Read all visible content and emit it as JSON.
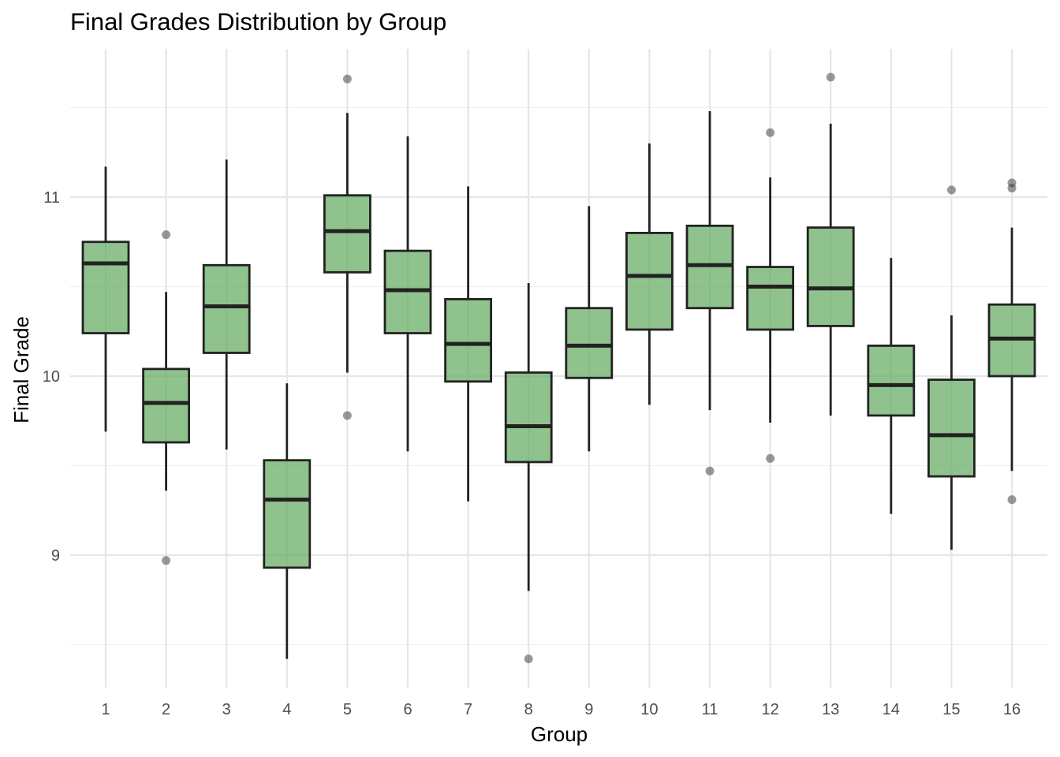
{
  "chart_data": {
    "type": "boxplot",
    "title": "Final Grades Distribution by Group",
    "xlabel": "Group",
    "ylabel": "Final Grade",
    "ylim": [
      8.3,
      11.8
    ],
    "yticks": [
      9,
      10,
      11
    ],
    "y_minor_ticks": [
      8.5,
      9.5,
      10.5,
      11.5
    ],
    "grid": true,
    "legend": "none",
    "colors": {
      "box_fill": "#5fa85c",
      "box_stroke": "#222222",
      "outlier": "#333333"
    },
    "categories": [
      "1",
      "2",
      "3",
      "4",
      "5",
      "6",
      "7",
      "8",
      "9",
      "10",
      "11",
      "12",
      "13",
      "14",
      "15",
      "16"
    ],
    "boxes": [
      {
        "group": "1",
        "whisker_low": 9.69,
        "q1": 10.24,
        "median": 10.63,
        "q3": 10.75,
        "whisker_high": 11.17,
        "outliers": []
      },
      {
        "group": "2",
        "whisker_low": 9.36,
        "q1": 9.63,
        "median": 9.85,
        "q3": 10.04,
        "whisker_high": 10.47,
        "outliers": [
          10.79,
          8.97
        ]
      },
      {
        "group": "3",
        "whisker_low": 9.59,
        "q1": 10.13,
        "median": 10.39,
        "q3": 10.62,
        "whisker_high": 11.21,
        "outliers": []
      },
      {
        "group": "4",
        "whisker_low": 8.42,
        "q1": 8.93,
        "median": 9.31,
        "q3": 9.53,
        "whisker_high": 9.96,
        "outliers": []
      },
      {
        "group": "5",
        "whisker_low": 10.02,
        "q1": 10.58,
        "median": 10.81,
        "q3": 11.01,
        "whisker_high": 11.47,
        "outliers": [
          11.66,
          9.78
        ]
      },
      {
        "group": "6",
        "whisker_low": 9.58,
        "q1": 10.24,
        "median": 10.48,
        "q3": 10.7,
        "whisker_high": 11.34,
        "outliers": []
      },
      {
        "group": "7",
        "whisker_low": 9.3,
        "q1": 9.97,
        "median": 10.18,
        "q3": 10.43,
        "whisker_high": 11.06,
        "outliers": []
      },
      {
        "group": "8",
        "whisker_low": 8.8,
        "q1": 9.52,
        "median": 9.72,
        "q3": 10.02,
        "whisker_high": 10.52,
        "outliers": [
          8.42
        ]
      },
      {
        "group": "9",
        "whisker_low": 9.58,
        "q1": 9.99,
        "median": 10.17,
        "q3": 10.38,
        "whisker_high": 10.95,
        "outliers": []
      },
      {
        "group": "10",
        "whisker_low": 9.84,
        "q1": 10.26,
        "median": 10.56,
        "q3": 10.8,
        "whisker_high": 11.3,
        "outliers": []
      },
      {
        "group": "11",
        "whisker_low": 9.81,
        "q1": 10.38,
        "median": 10.62,
        "q3": 10.84,
        "whisker_high": 11.48,
        "outliers": [
          9.47
        ]
      },
      {
        "group": "12",
        "whisker_low": 9.74,
        "q1": 10.26,
        "median": 10.5,
        "q3": 10.61,
        "whisker_high": 11.11,
        "outliers": [
          11.36,
          9.54
        ]
      },
      {
        "group": "13",
        "whisker_low": 9.78,
        "q1": 10.28,
        "median": 10.49,
        "q3": 10.83,
        "whisker_high": 11.41,
        "outliers": [
          11.67
        ]
      },
      {
        "group": "14",
        "whisker_low": 9.23,
        "q1": 9.78,
        "median": 9.95,
        "q3": 10.17,
        "whisker_high": 10.66,
        "outliers": []
      },
      {
        "group": "15",
        "whisker_low": 9.03,
        "q1": 9.44,
        "median": 9.67,
        "q3": 9.98,
        "whisker_high": 10.34,
        "outliers": [
          11.04
        ]
      },
      {
        "group": "16",
        "whisker_low": 9.47,
        "q1": 10.0,
        "median": 10.21,
        "q3": 10.4,
        "whisker_high": 10.83,
        "outliers": [
          11.08,
          11.05,
          9.31
        ]
      }
    ]
  }
}
